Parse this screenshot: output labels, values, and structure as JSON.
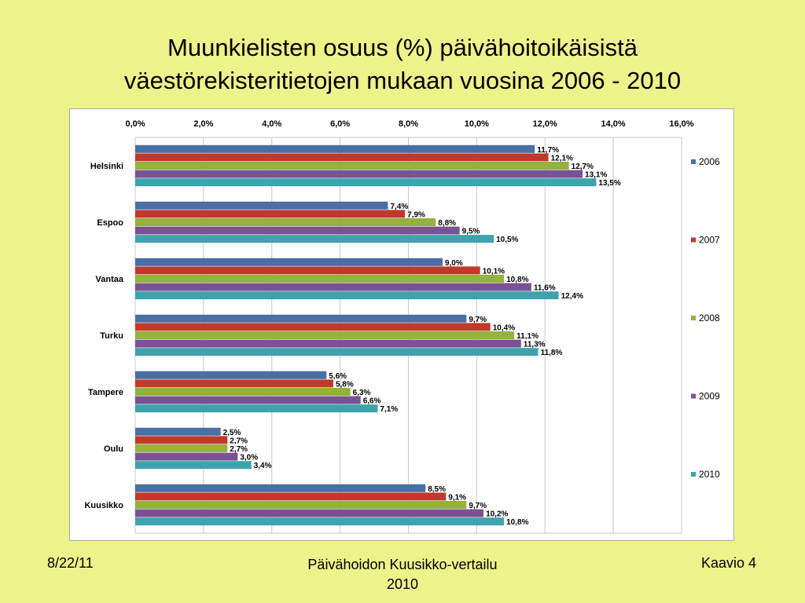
{
  "slide": {
    "title_line1": "Muunkielisten osuus (%) päivähoitoikäisistä",
    "title_line2": "väestörekisteritietojen mukaan vuosina 2006 - 2010",
    "footer_date": "8/22/11",
    "footer_center_line1": "Päivähoidon Kuusikko-vertailu",
    "footer_center_line2": "2010",
    "footer_page": "Kaavio 4"
  },
  "chart_data": {
    "type": "bar",
    "orientation": "horizontal",
    "categories": [
      "Helsinki",
      "Espoo",
      "Vantaa",
      "Turku",
      "Tampere",
      "Oulu",
      "Kuusikko"
    ],
    "x_ticks": [
      "0,0%",
      "2,0%",
      "4,0%",
      "6,0%",
      "8,0%",
      "10,0%",
      "12,0%",
      "14,0%",
      "16,0%"
    ],
    "xlim": [
      0,
      16
    ],
    "x_axis_position": "top",
    "grid": true,
    "legend_position": "right",
    "series": [
      {
        "name": "2006",
        "color": "#4a6fa5",
        "values": [
          11.7,
          7.4,
          9.0,
          9.7,
          5.6,
          2.5,
          8.5
        ],
        "labels": [
          "11,7%",
          "7,4%",
          "9,0%",
          "9,7%",
          "5,6%",
          "2,5%",
          "8,5%"
        ]
      },
      {
        "name": "2007",
        "color": "#c0392b",
        "values": [
          12.1,
          7.9,
          10.1,
          10.4,
          5.8,
          2.7,
          9.1
        ],
        "labels": [
          "12,1%",
          "7,9%",
          "10,1%",
          "10,4%",
          "5,8%",
          "2,7%",
          "9,1%"
        ]
      },
      {
        "name": "2008",
        "color": "#94b23d",
        "values": [
          12.7,
          8.8,
          10.8,
          11.1,
          6.3,
          2.7,
          9.7
        ],
        "labels": [
          "12,7%",
          "8,8%",
          "10,8%",
          "11,1%",
          "6,3%",
          "2,7%",
          "9,7%"
        ]
      },
      {
        "name": "2009",
        "color": "#7a5195",
        "values": [
          13.1,
          9.5,
          11.6,
          11.3,
          6.6,
          3.0,
          10.2
        ],
        "labels": [
          "13,1%",
          "9,5%",
          "11,6%",
          "11,3%",
          "6,6%",
          "3,0%",
          "10,2%"
        ]
      },
      {
        "name": "2010",
        "color": "#3ea3ad",
        "values": [
          13.5,
          10.5,
          12.4,
          11.8,
          7.1,
          3.4,
          10.8
        ],
        "labels": [
          "13,5%",
          "10,5%",
          "12,4%",
          "11,8%",
          "7,1%",
          "3,4%",
          "10,8%"
        ]
      }
    ]
  }
}
